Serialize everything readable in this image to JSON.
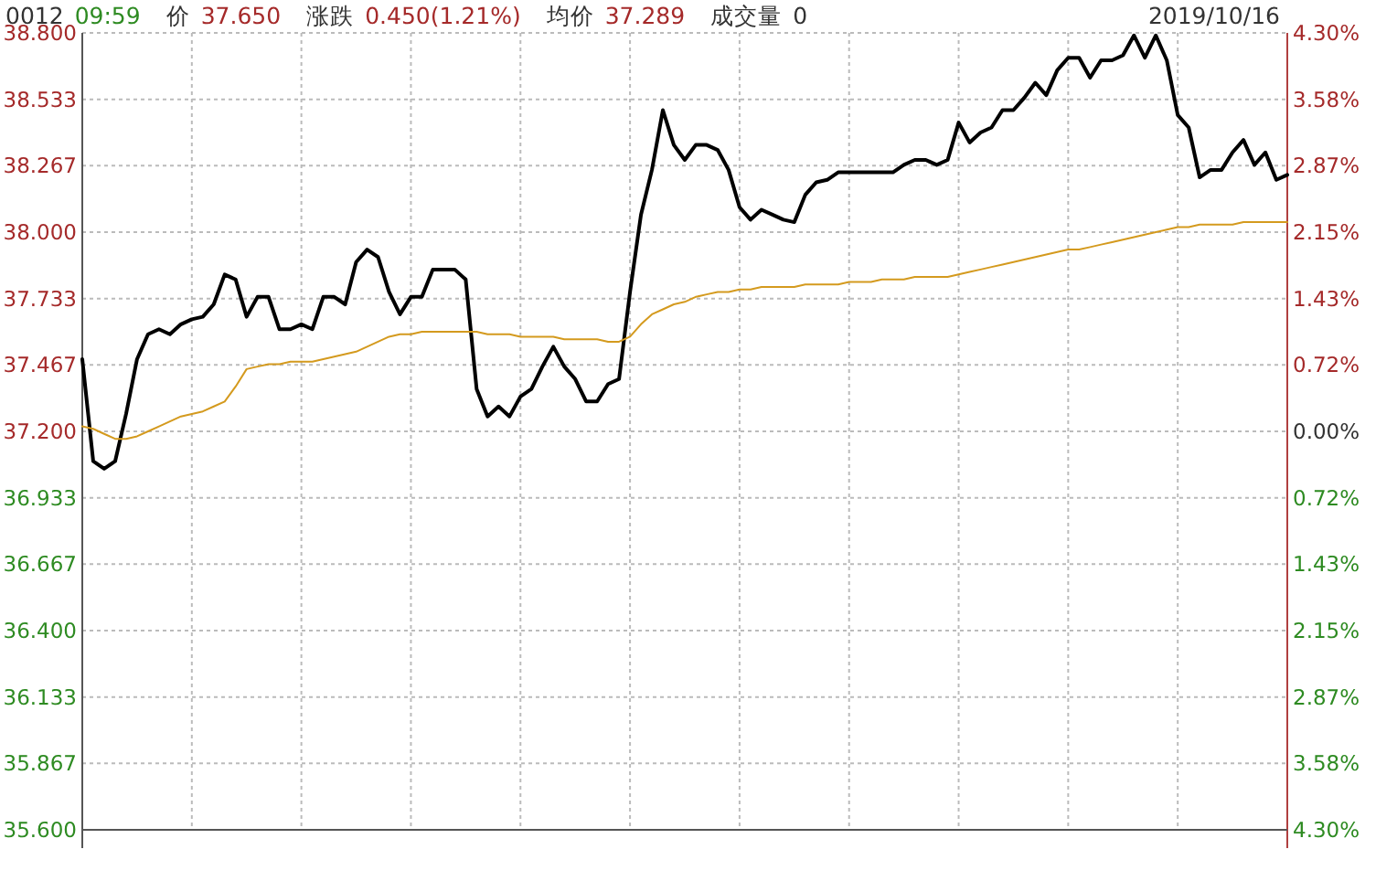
{
  "chart_data": {
    "type": "line",
    "annotations": [
      "0012",
      "09:59",
      "价",
      "37.650",
      "涨跌",
      "0.450(1.21%)",
      "均价",
      "37.289",
      "成交量",
      "0",
      "2019/10/16"
    ],
    "categories": [
      null,
      null,
      null,
      null,
      null,
      null,
      null,
      null,
      null,
      null,
      null,
      null,
      null,
      null,
      null,
      null,
      null,
      null,
      null,
      null,
      null,
      null,
      null,
      null,
      null,
      null,
      null,
      null,
      null,
      null,
      null,
      null,
      null,
      null,
      null,
      null,
      null,
      null,
      null,
      null,
      null,
      null,
      null,
      null,
      null,
      null,
      null,
      null,
      null,
      null,
      null,
      null,
      null,
      null,
      null,
      null,
      null,
      null,
      null,
      null,
      null,
      null,
      null,
      null,
      null,
      null,
      null,
      null,
      null,
      null,
      null,
      null,
      null,
      null,
      null,
      null,
      null,
      null,
      null,
      null,
      null,
      null,
      null,
      null,
      null,
      null,
      null,
      null,
      null,
      null,
      null,
      null,
      null,
      null,
      null,
      null,
      null,
      null,
      null,
      null,
      null,
      null,
      null,
      null,
      null,
      null,
      null,
      null,
      null,
      null,
      null
    ],
    "series": [
      {
        "color": "#000000",
        "values": [
          37.49,
          37.08,
          37.05,
          37.08,
          37.27,
          37.49,
          37.59,
          37.61,
          37.59,
          37.63,
          37.65,
          37.66,
          37.71,
          37.83,
          37.81,
          37.66,
          37.74,
          37.74,
          37.61,
          37.61,
          37.63,
          37.61,
          37.74,
          37.74,
          37.71,
          37.88,
          37.93,
          37.9,
          37.76,
          37.67,
          37.74,
          37.74,
          37.85,
          37.85,
          37.85,
          37.81,
          37.37,
          37.26,
          37.3,
          37.26,
          37.34,
          37.37,
          37.46,
          37.54,
          37.46,
          37.41,
          37.32,
          37.32,
          37.39,
          37.41,
          37.76,
          38.07,
          38.25,
          38.49,
          38.35,
          38.29,
          38.35,
          38.35,
          38.33,
          38.25,
          38.1,
          38.05,
          38.09,
          38.07,
          38.05,
          38.04,
          38.15,
          38.2,
          38.21,
          38.24,
          38.24,
          38.24,
          38.24,
          38.24,
          38.24,
          38.27,
          38.29,
          38.29,
          38.27,
          38.29,
          38.44,
          38.36,
          38.4,
          38.42,
          38.49,
          38.49,
          38.54,
          38.6,
          38.55,
          38.65,
          38.7,
          38.7,
          38.62,
          38.69,
          38.69,
          38.71,
          38.79,
          38.7,
          38.79,
          38.69,
          38.47,
          38.42,
          38.22,
          38.25,
          38.25,
          38.32,
          38.37,
          38.27,
          38.32,
          38.21,
          38.23
        ]
      },
      {
        "color": "#d49a1e",
        "values": [
          37.22,
          37.21,
          37.19,
          37.17,
          37.17,
          37.18,
          37.2,
          37.22,
          37.24,
          37.26,
          37.27,
          37.28,
          37.3,
          37.32,
          37.38,
          37.45,
          37.46,
          37.47,
          37.47,
          37.48,
          37.48,
          37.48,
          37.49,
          37.5,
          37.51,
          37.52,
          37.54,
          37.56,
          37.58,
          37.59,
          37.59,
          37.6,
          37.6,
          37.6,
          37.6,
          37.6,
          37.6,
          37.59,
          37.59,
          37.59,
          37.58,
          37.58,
          37.58,
          37.58,
          37.57,
          37.57,
          37.57,
          37.57,
          37.56,
          37.56,
          37.58,
          37.63,
          37.67,
          37.69,
          37.71,
          37.72,
          37.74,
          37.75,
          37.76,
          37.76,
          37.77,
          37.77,
          37.78,
          37.78,
          37.78,
          37.78,
          37.79,
          37.79,
          37.79,
          37.79,
          37.8,
          37.8,
          37.8,
          37.81,
          37.81,
          37.81,
          37.82,
          37.82,
          37.82,
          37.82,
          37.83,
          37.84,
          37.85,
          37.86,
          37.87,
          37.88,
          37.89,
          37.9,
          37.91,
          37.92,
          37.93,
          37.93,
          37.94,
          37.95,
          37.96,
          37.97,
          37.98,
          37.99,
          38.0,
          38.01,
          38.02,
          38.02,
          38.03,
          38.03,
          38.03,
          38.03,
          38.04,
          38.04,
          38.04,
          38.04,
          38.04
        ]
      }
    ],
    "ylim": [
      35.6,
      38.8
    ],
    "yticks": [
      {
        "value": 38.8,
        "label": "38.800"
      },
      {
        "value": 38.533,
        "label": "38.533"
      },
      {
        "value": 38.267,
        "label": "38.267"
      },
      {
        "value": 38.0,
        "label": "38.000"
      },
      {
        "value": 37.733,
        "label": "37.733"
      },
      {
        "value": 37.467,
        "label": "37.467"
      },
      {
        "value": 37.2,
        "label": "37.200"
      },
      {
        "value": 36.933,
        "label": "36.933"
      },
      {
        "value": 36.667,
        "label": "36.667"
      },
      {
        "value": 36.4,
        "label": "36.400"
      },
      {
        "value": 36.133,
        "label": "36.133"
      },
      {
        "value": 35.867,
        "label": "35.867"
      },
      {
        "value": 35.6,
        "label": "35.600"
      }
    ],
    "y2lim": [
      -4.3,
      4.3
    ],
    "y2ticks": [
      {
        "value": 4.3,
        "label": "4.30%"
      },
      {
        "value": 3.58,
        "label": "3.58%"
      },
      {
        "value": 2.87,
        "label": "2.87%"
      },
      {
        "value": 2.15,
        "label": "2.15%"
      },
      {
        "value": 1.43,
        "label": "1.43%"
      },
      {
        "value": 0.72,
        "label": "0.72%"
      },
      {
        "value": 0,
        "label": "0.00%"
      },
      {
        "value": -0.72,
        "label": "0.72%"
      },
      {
        "value": -1.43,
        "label": "1.43%"
      },
      {
        "value": -2.15,
        "label": "2.15%"
      },
      {
        "value": -2.87,
        "label": "2.87%"
      },
      {
        "value": -3.58,
        "label": "3.58%"
      },
      {
        "value": -4.3,
        "label": "4.30%"
      }
    ],
    "grid": true,
    "line_style": "solid"
  }
}
